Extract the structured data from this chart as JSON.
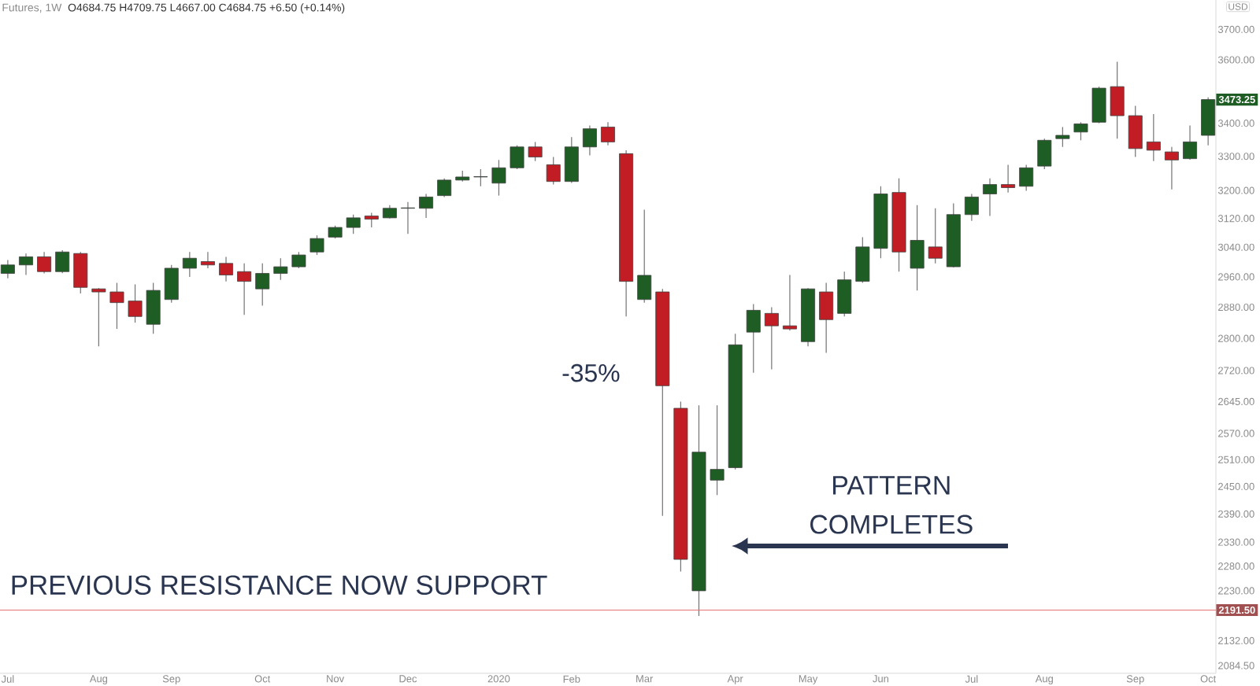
{
  "chart_data": {
    "type": "candlestick",
    "title": "Futures, 1W",
    "subtitle": "O4684.75 H4709.75 L4667.00 C4684.75 +6.50 (+0.14%)",
    "ylabel": "USD",
    "x": [
      "2019-07-01",
      "2019-07-08",
      "2019-07-15",
      "2019-07-22",
      "2019-07-29",
      "2019-08-05",
      "2019-08-12",
      "2019-08-19",
      "2019-08-26",
      "2019-09-02",
      "2019-09-09",
      "2019-09-16",
      "2019-09-23",
      "2019-09-30",
      "2019-10-07",
      "2019-10-14",
      "2019-10-21",
      "2019-10-28",
      "2019-11-04",
      "2019-11-11",
      "2019-11-18",
      "2019-11-25",
      "2019-12-02",
      "2019-12-09",
      "2019-12-16",
      "2019-12-23",
      "2019-12-30",
      "2020-01-06",
      "2020-01-13",
      "2020-01-20",
      "2020-01-27",
      "2020-02-03",
      "2020-02-10",
      "2020-02-17",
      "2020-02-24",
      "2020-03-02",
      "2020-03-09",
      "2020-03-16",
      "2020-03-23",
      "2020-03-30",
      "2020-04-06",
      "2020-04-13",
      "2020-04-20",
      "2020-04-27",
      "2020-05-04",
      "2020-05-11",
      "2020-05-18",
      "2020-05-25",
      "2020-06-01",
      "2020-06-08",
      "2020-06-15",
      "2020-06-22",
      "2020-06-29",
      "2020-07-06",
      "2020-07-13",
      "2020-07-20",
      "2020-07-27",
      "2020-08-03",
      "2020-08-10",
      "2020-08-17",
      "2020-08-24",
      "2020-08-31",
      "2020-09-07",
      "2020-09-14",
      "2020-09-21",
      "2020-09-28",
      "2020-10-05"
    ],
    "ohlc": [
      [
        2969,
        3005,
        2956,
        2992
      ],
      [
        2992,
        3023,
        2965,
        3014
      ],
      [
        3014,
        3027,
        2969,
        2974
      ],
      [
        2974,
        3032,
        2970,
        3027
      ],
      [
        3023,
        3027,
        2916,
        2932
      ],
      [
        2928,
        2930,
        2780,
        2920
      ],
      [
        2920,
        2944,
        2824,
        2892
      ],
      [
        2896,
        2940,
        2840,
        2856
      ],
      [
        2836,
        2944,
        2812,
        2924
      ],
      [
        2900,
        2992,
        2892,
        2983
      ],
      [
        2983,
        3027,
        2960,
        3010
      ],
      [
        3001,
        3027,
        2983,
        2992
      ],
      [
        2996,
        3014,
        2948,
        2965
      ],
      [
        2974,
        2996,
        2860,
        2948
      ],
      [
        2928,
        2996,
        2884,
        2969
      ],
      [
        2969,
        3010,
        2952,
        2987
      ],
      [
        2987,
        3027,
        2983,
        3019
      ],
      [
        3027,
        3073,
        3019,
        3064
      ],
      [
        3068,
        3100,
        3064,
        3095
      ],
      [
        3095,
        3131,
        3077,
        3122
      ],
      [
        3127,
        3136,
        3095,
        3118
      ],
      [
        3122,
        3158,
        3120,
        3149
      ],
      [
        3149,
        3167,
        3077,
        3150
      ],
      [
        3149,
        3190,
        3122,
        3181
      ],
      [
        3185,
        3235,
        3181,
        3230
      ],
      [
        3230,
        3257,
        3226,
        3239
      ],
      [
        3239,
        3262,
        3212,
        3240
      ],
      [
        3221,
        3289,
        3185,
        3266
      ],
      [
        3266,
        3333,
        3262,
        3328
      ],
      [
        3328,
        3343,
        3286,
        3298
      ],
      [
        3275,
        3298,
        3217,
        3226
      ],
      [
        3226,
        3358,
        3222,
        3328
      ],
      [
        3328,
        3393,
        3303,
        3383
      ],
      [
        3388,
        3403,
        3333,
        3343
      ],
      [
        3308,
        3318,
        2856,
        2948
      ],
      [
        2900,
        3145,
        2892,
        2964
      ],
      [
        2920,
        2928,
        2386,
        2683
      ],
      [
        2629,
        2645,
        2269,
        2294
      ],
      [
        2230,
        2636,
        2180,
        2527
      ],
      [
        2464,
        2636,
        2431,
        2488
      ],
      [
        2492,
        2812,
        2488,
        2784
      ],
      [
        2816,
        2888,
        2715,
        2872
      ],
      [
        2864,
        2880,
        2723,
        2832
      ],
      [
        2832,
        2965,
        2820,
        2824
      ],
      [
        2792,
        2930,
        2780,
        2928
      ],
      [
        2920,
        2944,
        2764,
        2848
      ],
      [
        2864,
        2974,
        2856,
        2952
      ],
      [
        2948,
        3068,
        2944,
        3041
      ],
      [
        3037,
        3212,
        3010,
        3190
      ],
      [
        3194,
        3235,
        2974,
        3027
      ],
      [
        2983,
        3158,
        2924,
        3059
      ],
      [
        3041,
        3149,
        2996,
        3010
      ],
      [
        2987,
        3163,
        2985,
        3131
      ],
      [
        3131,
        3190,
        3113,
        3181
      ],
      [
        3190,
        3235,
        3127,
        3217
      ],
      [
        3217,
        3275,
        3194,
        3208
      ],
      [
        3212,
        3275,
        3199,
        3266
      ],
      [
        3271,
        3353,
        3262,
        3348
      ],
      [
        3353,
        3388,
        3328,
        3363
      ],
      [
        3373,
        3403,
        3348,
        3398
      ],
      [
        3403,
        3514,
        3400,
        3509
      ],
      [
        3514,
        3594,
        3353,
        3423
      ],
      [
        3423,
        3454,
        3298,
        3323
      ],
      [
        3343,
        3428,
        3286,
        3318
      ],
      [
        3313,
        3328,
        3203,
        3289
      ],
      [
        3293,
        3393,
        3290,
        3343
      ],
      [
        3363,
        3480,
        3333,
        3473.25
      ]
    ],
    "colors": [
      "#1e5e24",
      "#1e5e24",
      "#c21d24",
      "#1e5e24",
      "#c21d24",
      "#c21d24",
      "#c21d24",
      "#c21d24",
      "#1e5e24",
      "#1e5e24",
      "#1e5e24",
      "#c21d24",
      "#c21d24",
      "#c21d24",
      "#1e5e24",
      "#1e5e24",
      "#1e5e24",
      "#1e5e24",
      "#1e5e24",
      "#1e5e24",
      "#c21d24",
      "#1e5e24",
      "#1e5e24",
      "#1e5e24",
      "#1e5e24",
      "#1e5e24",
      "#1e5e24",
      "#1e5e24",
      "#1e5e24",
      "#c21d24",
      "#c21d24",
      "#1e5e24",
      "#1e5e24",
      "#c21d24",
      "#c21d24",
      "#1e5e24",
      "#c21d24",
      "#c21d24",
      "#1e5e24",
      "#1e5e24",
      "#1e5e24",
      "#1e5e24",
      "#c21d24",
      "#c21d24",
      "#1e5e24",
      "#c21d24",
      "#1e5e24",
      "#1e5e24",
      "#1e5e24",
      "#c21d24",
      "#1e5e24",
      "#c21d24",
      "#1e5e24",
      "#1e5e24",
      "#1e5e24",
      "#c21d24",
      "#1e5e24",
      "#1e5e24",
      "#1e5e24",
      "#1e5e24",
      "#1e5e24",
      "#c21d24",
      "#c21d24",
      "#c21d24",
      "#c21d24",
      "#1e5e24",
      "#1e5e24"
    ],
    "log": "y",
    "xlim": [
      "2019-06-28",
      "2020-10-08"
    ],
    "ylim": [
      2070,
      3800
    ],
    "xticks": [
      {
        "value": "2019-07-01",
        "label": "Jul"
      },
      {
        "value": "2019-08-05",
        "label": "Aug"
      },
      {
        "value": "2019-09-02",
        "label": "Sep"
      },
      {
        "value": "2019-10-07",
        "label": "Oct"
      },
      {
        "value": "2019-11-04",
        "label": "Nov"
      },
      {
        "value": "2019-12-02",
        "label": "Dec"
      },
      {
        "value": "2020-01-06",
        "label": "2020"
      },
      {
        "value": "2020-02-03",
        "label": "Feb"
      },
      {
        "value": "2020-03-02",
        "label": "Mar"
      },
      {
        "value": "2020-04-06",
        "label": "Apr"
      },
      {
        "value": "2020-05-04",
        "label": "May"
      },
      {
        "value": "2020-06-01",
        "label": "Jun"
      },
      {
        "value": "2020-07-06",
        "label": "Jul"
      },
      {
        "value": "2020-08-03",
        "label": "Aug"
      },
      {
        "value": "2020-09-07",
        "label": "Sep"
      },
      {
        "value": "2020-10-05",
        "label": "Oct"
      }
    ],
    "yticks": [
      {
        "value": 2084.5,
        "label": "2084.50"
      },
      {
        "value": 2132,
        "label": "2132.00"
      },
      {
        "value": 2230,
        "label": "2230.00"
      },
      {
        "value": 2280,
        "label": "2280.00"
      },
      {
        "value": 2330,
        "label": "2330.00"
      },
      {
        "value": 2390,
        "label": "2390.00"
      },
      {
        "value": 2450,
        "label": "2450.00"
      },
      {
        "value": 2510,
        "label": "2510.00"
      },
      {
        "value": 2570,
        "label": "2570.00"
      },
      {
        "value": 2645,
        "label": "2645.00"
      },
      {
        "value": 2720,
        "label": "2720.00"
      },
      {
        "value": 2800,
        "label": "2800.00"
      },
      {
        "value": 2880,
        "label": "2880.00"
      },
      {
        "value": 2960,
        "label": "2960.00"
      },
      {
        "value": 3040,
        "label": "3040.00"
      },
      {
        "value": 3120,
        "label": "3120.00"
      },
      {
        "value": 3200,
        "label": "3200.00"
      },
      {
        "value": 3300,
        "label": "3300.00"
      },
      {
        "value": 3400,
        "label": "3400.00"
      },
      {
        "value": 3600,
        "label": "3600.00"
      },
      {
        "value": 3700,
        "label": "3700.00"
      }
    ],
    "ref_lines": [
      {
        "axis": "y",
        "value": 2191.5,
        "label": "2191.50",
        "color": "#e57373"
      }
    ],
    "annotations": [
      "-35%",
      "PREVIOUS RESISTANCE NOW SUPPORT",
      "PATTERN COMPLETES",
      {
        "text": "3473.25",
        "x": "2020-10-05",
        "y": 3473.25
      }
    ]
  }
}
